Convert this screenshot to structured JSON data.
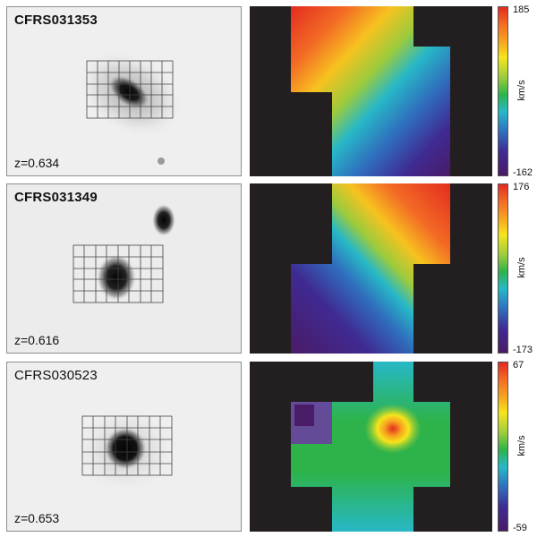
{
  "rows": [
    {
      "galaxy": "CFRS031353",
      "redshift": "z=0.634",
      "vmax": "185",
      "vmin": "-162",
      "unit": "km/s"
    },
    {
      "galaxy": "CFRS031349",
      "redshift": "z=0.616",
      "vmax": "176",
      "vmin": "-173",
      "unit": "km/s"
    },
    {
      "galaxy": "CFRS030523",
      "redshift": "z=0.653",
      "vmax": "67",
      "vmin": "-59",
      "unit": "km/s"
    }
  ],
  "colors": {
    "background": "#231f20",
    "colorbar_top": "#e32b1f",
    "colorbar_bottom": "#4a1b66"
  }
}
